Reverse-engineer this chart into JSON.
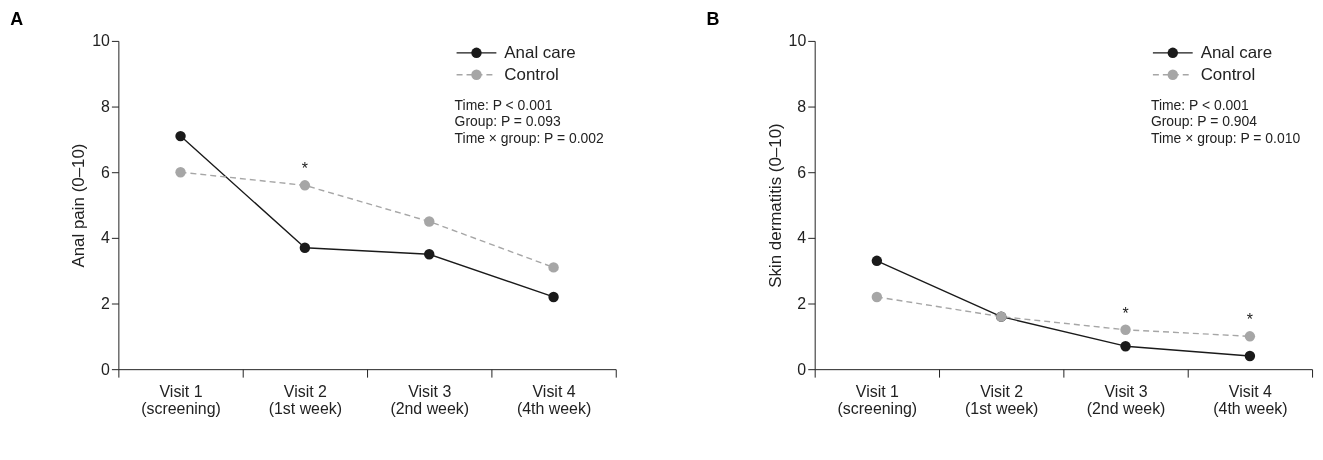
{
  "chart_data": [
    {
      "type": "line",
      "title": "A",
      "ylabel": "Anal pain (0–10)",
      "categories": [
        "Visit 1\n(screening)",
        "Visit 2\n(1st week)",
        "Visit 3\n(2nd week)",
        "Visit 4\n(4th week)"
      ],
      "series": [
        {
          "name": "Anal care",
          "color": "#1a1a1a",
          "line_style": "solid",
          "values": [
            7.1,
            3.7,
            3.5,
            2.2
          ]
        },
        {
          "name": "Control",
          "color": "#a6a6a6",
          "line_style": "dashed",
          "values": [
            6.0,
            5.6,
            4.5,
            3.1
          ]
        }
      ],
      "ylim": [
        0,
        10
      ],
      "yticks": [
        0,
        2,
        4,
        6,
        8,
        10
      ],
      "grid": false,
      "legend": "top right",
      "marker": "circle",
      "annotations": [
        "Time: P < 0.001",
        "Group: P = 0.093",
        "Time × group: P = 0.002",
        {
          "text": "*",
          "x": "Visit 2\n(1st week)",
          "y": 5.6
        }
      ]
    },
    {
      "type": "line",
      "title": "B",
      "ylabel": "Skin dermatitis (0–10)",
      "categories": [
        "Visit 1\n(screening)",
        "Visit 2\n(1st week)",
        "Visit 3\n(2nd week)",
        "Visit 4\n(4th week)"
      ],
      "series": [
        {
          "name": "Anal care",
          "color": "#1a1a1a",
          "line_style": "solid",
          "values": [
            3.3,
            1.6,
            0.7,
            0.4
          ]
        },
        {
          "name": "Control",
          "color": "#a6a6a6",
          "line_style": "dashed",
          "values": [
            2.2,
            1.6,
            1.2,
            1.0
          ]
        }
      ],
      "ylim": [
        0,
        10
      ],
      "yticks": [
        0,
        2,
        4,
        6,
        8,
        10
      ],
      "grid": false,
      "legend": "top right",
      "marker": "circle",
      "annotations": [
        "Time: P < 0.001",
        "Group: P = 0.904",
        "Time × group: P = 0.010",
        {
          "text": "*",
          "x": "Visit 3\n(2nd week)",
          "y": 1.2
        },
        {
          "text": "*",
          "x": "Visit 4\n(4th week)",
          "y": 1.0
        }
      ]
    }
  ]
}
